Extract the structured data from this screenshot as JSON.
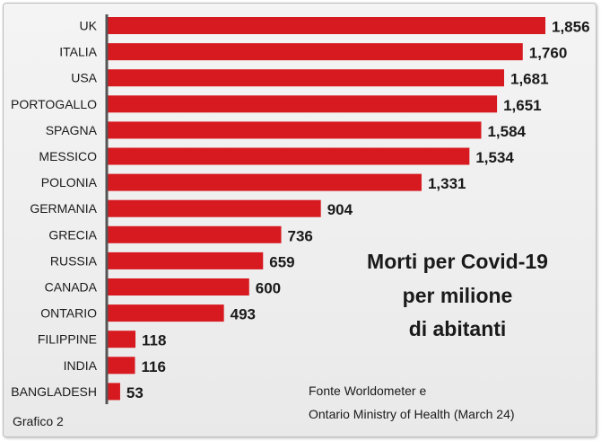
{
  "chart_data": {
    "type": "bar",
    "orientation": "horizontal",
    "categories": [
      "UK",
      "ITALIA",
      "USA",
      "PORTOGALLO",
      "SPAGNA",
      "MESSICO",
      "POLONIA",
      "GERMANIA",
      "GRECIA",
      "RUSSIA",
      "CANADA",
      "ONTARIO",
      "FILIPPINE",
      "INDIA",
      "BANGLADESH"
    ],
    "values": [
      1856,
      1760,
      1681,
      1651,
      1584,
      1534,
      1331,
      904,
      736,
      659,
      600,
      493,
      118,
      116,
      53
    ],
    "value_labels": [
      "1,856",
      "1,760",
      "1,681",
      "1,651",
      "1,584",
      "1,534",
      "1,331",
      "904",
      "736",
      "659",
      "600",
      "493",
      "118",
      "116",
      "53"
    ],
    "title_lines": [
      "Morti per Covid-19",
      "per milione",
      "di abitanti"
    ],
    "source_lines": [
      "Fonte Worldometer e",
      "Ontario Ministry of Health (March 24)"
    ],
    "footer": "Grafico 2",
    "bar_color": "#d71920",
    "axis_color": "#555555",
    "grid": false,
    "legend": "none"
  }
}
